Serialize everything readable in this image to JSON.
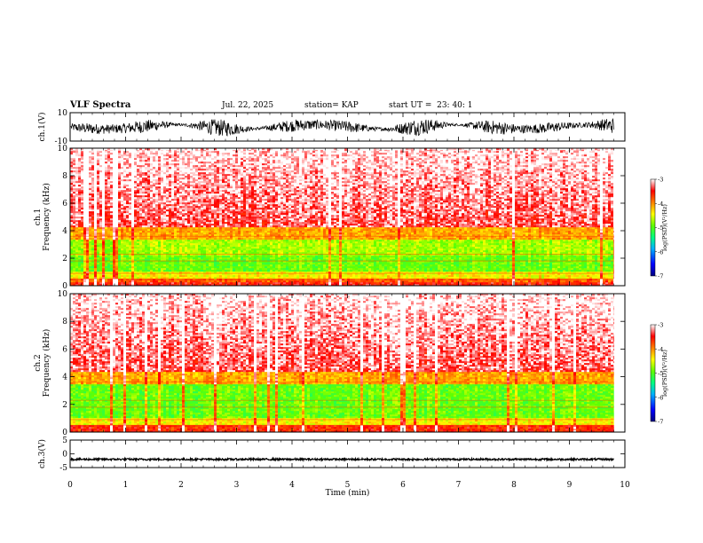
{
  "header": {
    "title": "VLF Spectra",
    "date": "Jul. 22, 2025",
    "station": "station= KAP",
    "start": "start UT =  23: 40: 1"
  },
  "chart_data": [
    {
      "type": "line",
      "panel": "ch1-waveform",
      "ylabel": "ch.1(V)",
      "ylim": [
        -10,
        10
      ],
      "yticks": [
        "10",
        "-10"
      ],
      "xlim": [
        0,
        10
      ],
      "data_end_min": 9.8,
      "amplitude_range": [
        -6,
        6
      ]
    },
    {
      "type": "heatmap",
      "panel": "ch1-spectrogram",
      "ylabel": "ch.1\nFrequency (kHz)",
      "ylim": [
        0,
        10
      ],
      "yticks": [
        "0",
        "2",
        "4",
        "6",
        "8",
        "10"
      ],
      "xlim": [
        0,
        10
      ],
      "data_end_min": 9.8,
      "bands": [
        {
          "from": 0,
          "to": 0.2,
          "level": -3.5
        },
        {
          "from": 0.2,
          "to": 0.5,
          "level": -3.8
        },
        {
          "from": 0.5,
          "to": 1.0,
          "level": -4.4
        },
        {
          "from": 1.0,
          "to": 2.2,
          "level": -4.9
        },
        {
          "from": 2.2,
          "to": 3.4,
          "level": -4.7
        },
        {
          "from": 3.4,
          "to": 4.2,
          "level": -4.1
        },
        {
          "from": 4.2,
          "to": 10.0,
          "level": -3.4
        }
      ],
      "colorbar": {
        "label": "log(PSD)(V²/Hz)",
        "range": [
          -7,
          -3
        ],
        "ticks": [
          "-3",
          "-4",
          "-5",
          "-6",
          "-7"
        ]
      }
    },
    {
      "type": "heatmap",
      "panel": "ch2-spectrogram",
      "ylabel": "ch.2\nFrequency (kHz)",
      "ylim": [
        0,
        10
      ],
      "yticks": [
        "0",
        "2",
        "4",
        "6",
        "8",
        "10"
      ],
      "xlim": [
        0,
        10
      ],
      "data_end_min": 9.8,
      "bands": [
        {
          "from": 0,
          "to": 0.5,
          "level": -3.6
        },
        {
          "from": 0.5,
          "to": 1.0,
          "level": -4.4
        },
        {
          "from": 1.0,
          "to": 2.2,
          "level": -4.9
        },
        {
          "from": 2.2,
          "to": 3.4,
          "level": -4.9
        },
        {
          "from": 3.4,
          "to": 4.3,
          "level": -4.1
        },
        {
          "from": 4.3,
          "to": 10.0,
          "level": -3.4
        }
      ],
      "colorbar": {
        "label": "log(PSD)(V²/Hz)",
        "range": [
          -7,
          -3
        ],
        "ticks": [
          "-3",
          "-4",
          "-5",
          "-6",
          "-7"
        ]
      }
    },
    {
      "type": "line",
      "panel": "ch3-waveform",
      "ylabel": "ch.3(V)",
      "ylim": [
        -5,
        5
      ],
      "yticks": [
        "5",
        "0",
        "-5"
      ],
      "xlim": [
        0,
        10
      ],
      "data_end_min": 9.8,
      "offset": -2.0,
      "amplitude": 0.35,
      "xlabel": "Time (min)",
      "xticks": [
        "0",
        "1",
        "2",
        "3",
        "4",
        "5",
        "6",
        "7",
        "8",
        "9",
        "10"
      ]
    }
  ]
}
